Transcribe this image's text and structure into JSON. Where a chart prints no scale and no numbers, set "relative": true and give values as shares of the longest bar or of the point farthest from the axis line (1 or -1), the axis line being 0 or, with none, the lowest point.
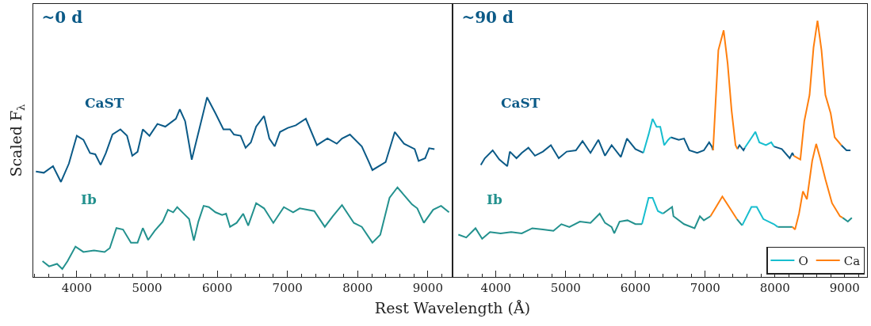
{
  "chart_data": [
    {
      "type": "line",
      "title": "~0 d",
      "xlabel": "Rest Wavelength (Å)",
      "ylabel": "Scaled F$_{λ}$",
      "relative": true,
      "xlim": [
        3380,
        9340
      ],
      "xticks": [
        4000,
        5000,
        6000,
        7000,
        8000,
        9000
      ],
      "tick_labels": "x",
      "grid": false,
      "legend": false,
      "marker": "none",
      "line_style": "solid",
      "annotations": [
        "CaST",
        "Ib"
      ],
      "series": [
        {
          "color": "#0b5a87",
          "x": [
            3417,
            3530,
            3661,
            3774,
            3887,
            4000,
            4094,
            4188,
            4263,
            4339,
            4414,
            4508,
            4621,
            4715,
            4790,
            4865,
            4940,
            5035,
            5148,
            5260,
            5411,
            5467,
            5543,
            5637,
            5749,
            5855,
            5975,
            6088,
            6182,
            6238,
            6333,
            6404,
            6479,
            6554,
            6667,
            6742,
            6818,
            6893,
            7006,
            7119,
            7262,
            7420,
            7570,
            7702,
            7777,
            7890,
            8059,
            8153,
            8210,
            8398,
            8529,
            8661,
            8812,
            8868,
            8962,
            9018,
            9094
          ],
          "values": [
            0.587,
            0.58,
            0.617,
            0.529,
            0.631,
            0.786,
            0.764,
            0.69,
            0.683,
            0.624,
            0.69,
            0.793,
            0.822,
            0.786,
            0.675,
            0.697,
            0.822,
            0.786,
            0.852,
            0.837,
            0.881,
            0.933,
            0.867,
            0.653,
            0.83,
            1,
            0.911,
            0.822,
            0.822,
            0.793,
            0.786,
            0.719,
            0.749,
            0.837,
            0.896,
            0.771,
            0.727,
            0.807,
            0.83,
            0.844,
            0.881,
            0.734,
            0.771,
            0.742,
            0.771,
            0.793,
            0.727,
            0.646,
            0.595,
            0.639,
            0.807,
            0.742,
            0.712,
            0.646,
            0.661,
            0.717,
            0.712
          ]
        },
        {
          "color": "#23918e",
          "x": [
            3511,
            3605,
            3718,
            3793,
            3868,
            3981,
            4094,
            4245,
            4395,
            4470,
            4564,
            4658,
            4771,
            4865,
            4940,
            5016,
            5110,
            5223,
            5298,
            5373,
            5430,
            5524,
            5599,
            5667,
            5731,
            5806,
            5881,
            5975,
            6069,
            6126,
            6182,
            6276,
            6370,
            6441,
            6554,
            6667,
            6799,
            6949,
            7081,
            7175,
            7382,
            7532,
            7645,
            7777,
            7946,
            8059,
            8210,
            8322,
            8454,
            8567,
            8661,
            8774,
            8849,
            8943,
            9075,
            9188,
            9301
          ],
          "values": [
            0.088,
            0.059,
            0.073,
            0.044,
            0.088,
            0.169,
            0.139,
            0.147,
            0.139,
            0.161,
            0.272,
            0.264,
            0.191,
            0.191,
            0.272,
            0.206,
            0.257,
            0.308,
            0.374,
            0.36,
            0.389,
            0.352,
            0.323,
            0.203,
            0.308,
            0.396,
            0.389,
            0.36,
            0.345,
            0.352,
            0.279,
            0.301,
            0.352,
            0.286,
            0.411,
            0.382,
            0.301,
            0.389,
            0.36,
            0.382,
            0.367,
            0.279,
            0.338,
            0.4,
            0.301,
            0.279,
            0.191,
            0.235,
            0.441,
            0.499,
            0.455,
            0.404,
            0.382,
            0.301,
            0.374,
            0.396,
            0.36
          ]
        }
      ]
    },
    {
      "type": "line",
      "title": "~90 d",
      "relative": true,
      "xlim": [
        3390,
        9320
      ],
      "xticks": [
        4000,
        5000,
        6000,
        7000,
        8000,
        9000
      ],
      "tick_labels": "x",
      "grid": false,
      "legend": "bottom right",
      "marker": "none",
      "line_style": "solid",
      "annotations": [
        "CaST",
        "Ib"
      ],
      "series": [
        {
          "color": "#0b5a87",
          "x": [
            3784,
            3841,
            3954,
            4049,
            4163,
            4200,
            4295,
            4371,
            4466,
            4560,
            4674,
            4788,
            4901,
            5015,
            5147,
            5242,
            5356,
            5469,
            5564,
            5659,
            5791,
            5879,
            6000,
            6113
          ],
          "values": [
            0.437,
            0.463,
            0.494,
            0.458,
            0.432,
            0.489,
            0.463,
            0.484,
            0.504,
            0.473,
            0.489,
            0.514,
            0.463,
            0.489,
            0.494,
            0.53,
            0.484,
            0.535,
            0.473,
            0.514,
            0.468,
            0.54,
            0.499,
            0.484
          ]
        },
        {
          "color": "#23918e",
          "x": [
            3462,
            3575,
            3708,
            3803,
            3916,
            4068,
            4219,
            4371,
            4522,
            4674,
            4825,
            4939,
            5053,
            5204,
            5356,
            5488,
            5564,
            5659,
            5697,
            5773,
            5886,
            6000,
            6094
          ],
          "values": [
            0.165,
            0.154,
            0.19,
            0.149,
            0.175,
            0.17,
            0.175,
            0.17,
            0.19,
            0.185,
            0.18,
            0.206,
            0.195,
            0.216,
            0.211,
            0.247,
            0.211,
            0.195,
            0.17,
            0.216,
            0.221,
            0.206,
            0.206
          ]
        },
        {
          "color": "#0b5a87",
          "x": [
            6507,
            6621,
            6697,
            6773,
            6886,
            6981,
            7057,
            7095,
            7113
          ],
          "values": [
            0.545,
            0.535,
            0.54,
            0.494,
            0.484,
            0.494,
            0.525,
            0.509,
            0.494
          ]
        },
        {
          "color": "#0b5a87",
          "x": [
            7462,
            7492,
            7549,
            7568
          ],
          "values": [
            0.499,
            0.514,
            0.494,
            0.504
          ]
        },
        {
          "color": "#0b5a87",
          "x": [
            7985,
            8098,
            8212,
            8250,
            8269
          ],
          "values": [
            0.509,
            0.499,
            0.463,
            0.484,
            0.473
          ]
        },
        {
          "color": "#0b5a87",
          "x": [
            8951,
            9026,
            9083
          ],
          "values": [
            0.514,
            0.494,
            0.494
          ]
        },
        {
          "color": "#23918e",
          "x": [
            6394,
            6526,
            6545,
            6697,
            6848,
            6924,
            6981,
            7076
          ],
          "values": [
            0.247,
            0.273,
            0.237,
            0.206,
            0.19,
            0.237,
            0.221,
            0.237
          ]
        },
        {
          "color": "#23918e",
          "x": [
            7454,
            7530
          ],
          "values": [
            0.226,
            0.201
          ]
        },
        {
          "color": "#23918e",
          "x": [
            8042,
            8250
          ],
          "values": [
            0.195,
            0.195
          ]
        },
        {
          "color": "#23918e",
          "x": [
            8970,
            9045,
            9102
          ],
          "values": [
            0.231,
            0.216,
            0.231
          ]
        },
        {
          "name": "O",
          "color": "#17becf",
          "x": [
            6113,
            6189,
            6246,
            6303,
            6356,
            6413,
            6470,
            6507
          ],
          "values": [
            0.484,
            0.556,
            0.617,
            0.586,
            0.586,
            0.514,
            0.535,
            0.545
          ]
        },
        {
          "color": "#17becf",
          "x": [
            7568,
            7644,
            7720,
            7776,
            7871,
            7947,
            7985
          ],
          "values": [
            0.504,
            0.535,
            0.566,
            0.525,
            0.514,
            0.525,
            0.509
          ]
        },
        {
          "color": "#17becf",
          "x": [
            6094,
            6189,
            6246,
            6322,
            6394
          ],
          "values": [
            0.206,
            0.309,
            0.309,
            0.257,
            0.247
          ]
        },
        {
          "color": "#17becf",
          "x": [
            7530,
            7663,
            7739,
            7833,
            7985,
            8042
          ],
          "values": [
            0.201,
            0.273,
            0.273,
            0.226,
            0.206,
            0.195
          ]
        },
        {
          "name": "Ca",
          "color": "#ff7f0e",
          "x": [
            7113,
            7189,
            7265,
            7322,
            7379,
            7435,
            7462
          ],
          "values": [
            0.494,
            0.885,
            0.962,
            0.833,
            0.648,
            0.514,
            0.499
          ]
        },
        {
          "color": "#ff7f0e",
          "x": [
            8269,
            8364,
            8420,
            8496,
            8553,
            8610,
            8667,
            8723,
            8799,
            8856,
            8951
          ],
          "values": [
            0.473,
            0.458,
            0.607,
            0.71,
            0.895,
            1,
            0.885,
            0.71,
            0.638,
            0.545,
            0.514
          ]
        },
        {
          "color": "#ff7f0e",
          "x": [
            7076,
            7150,
            7246,
            7350,
            7454
          ],
          "values": [
            0.237,
            0.27,
            0.314,
            0.27,
            0.226
          ]
        },
        {
          "color": "#ff7f0e",
          "x": [
            8250,
            8288,
            8345,
            8401,
            8458,
            8534,
            8591,
            8648,
            8723,
            8818,
            8932,
            8970
          ],
          "values": [
            0.195,
            0.185,
            0.247,
            0.334,
            0.303,
            0.453,
            0.519,
            0.463,
            0.381,
            0.288,
            0.237,
            0.231
          ]
        }
      ]
    }
  ]
}
